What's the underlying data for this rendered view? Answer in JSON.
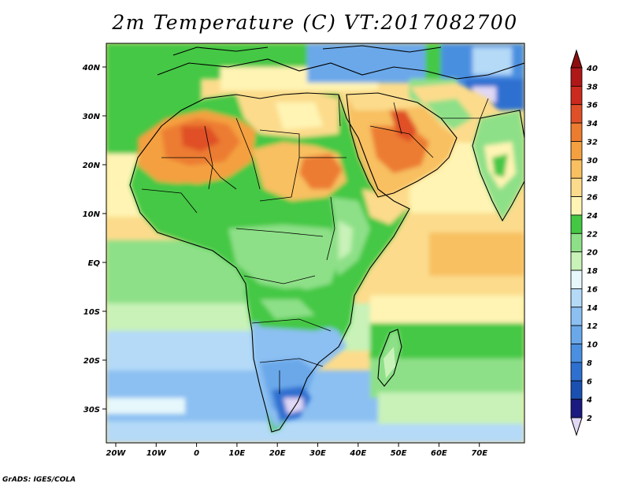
{
  "title": "2m Temperature (C) VT:2017082700",
  "credit": "GrADS: IGES/COLA",
  "lon_labels": [
    "20W",
    "10W",
    "0",
    "10E",
    "20E",
    "30E",
    "40E",
    "50E",
    "60E",
    "70E"
  ],
  "lat_labels": [
    "40N",
    "30N",
    "20N",
    "10N",
    "EQ",
    "10S",
    "20S",
    "30S"
  ],
  "colorbar": {
    "labels": [
      "2",
      "4",
      "6",
      "8",
      "10",
      "12",
      "14",
      "16",
      "18",
      "20",
      "22",
      "24",
      "26",
      "28",
      "30",
      "32",
      "34",
      "36",
      "38",
      "40"
    ],
    "colors": [
      "#e0d8f5",
      "#1a1a80",
      "#1a50b0",
      "#2e70d0",
      "#4a8fe0",
      "#6aa8ea",
      "#8cc0f2",
      "#b4daf8",
      "#e6f8fc",
      "#c8f2b8",
      "#8ee088",
      "#44c844",
      "#fff4b4",
      "#fcdc8c",
      "#f8c060",
      "#f4a040",
      "#ec7c30",
      "#e05028",
      "#cc2a1e",
      "#b01818",
      "#8e0e0e"
    ]
  },
  "map": {
    "variable": "2m Temperature",
    "units": "C",
    "valid_time": "2017082700",
    "region": "Africa / Arabian Sea / Middle East",
    "lon_range": [
      -22,
      80
    ],
    "lat_range": [
      -37,
      45
    ]
  }
}
